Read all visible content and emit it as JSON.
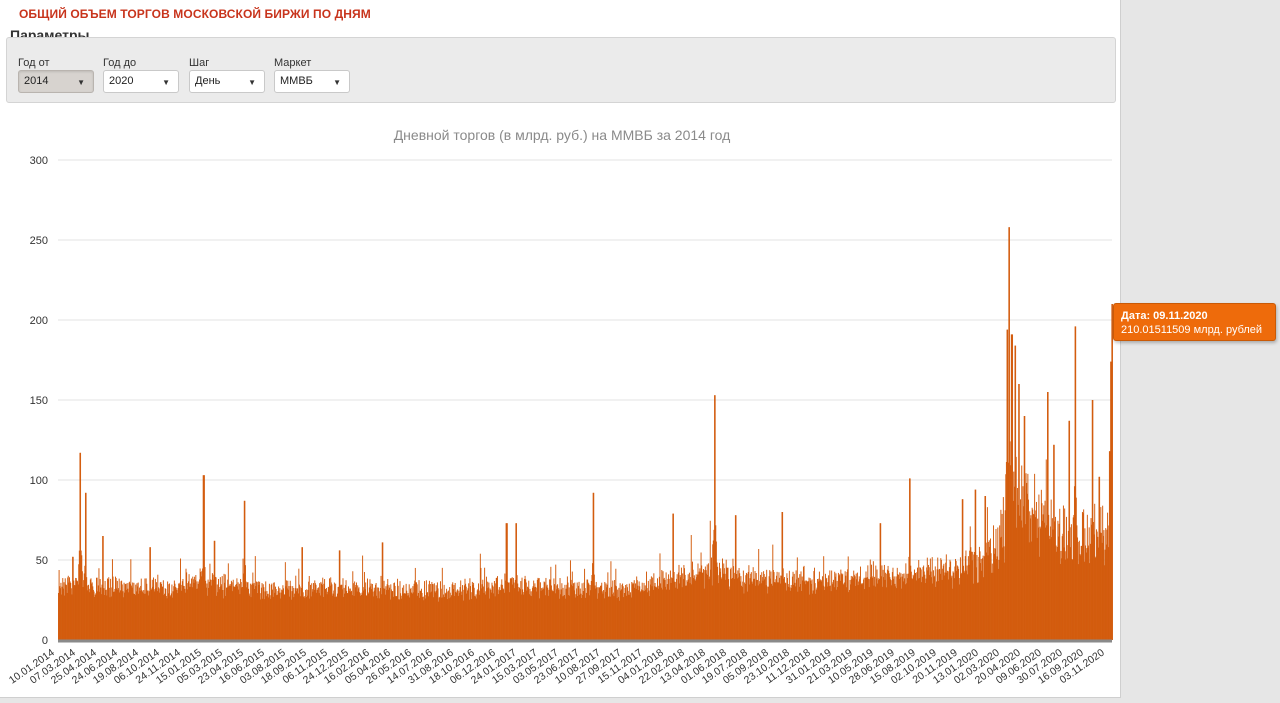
{
  "header": {
    "title": "ОБЩИЙ ОБЪЕМ ТОРГОВ МОСКОВСКОЙ БИРЖИ ПО ДНЯМ",
    "params_title": "Параметры"
  },
  "params": [
    {
      "label": "Год от",
      "value": "2014"
    },
    {
      "label": "Год до",
      "value": "2020"
    },
    {
      "label": "Шаг",
      "value": "День"
    },
    {
      "label": "Маркет",
      "value": "ММВБ"
    }
  ],
  "tooltip": {
    "date": "Дата: 09.11.2020",
    "value": "210.01511509 млрд. рублей"
  },
  "colors": {
    "bar": "#d35c0e",
    "title": "#c8341c",
    "tooltip": "#ee6b0b",
    "grid": "#e3e3e3"
  },
  "chart_data": {
    "type": "bar",
    "title": "Дневной  торгов (в млрд. руб.) на ММВБ за 2014 год",
    "ylim": [
      0,
      300
    ],
    "yticks": [
      0,
      50,
      100,
      150,
      200,
      250,
      300
    ],
    "xlabels": [
      "10.01.2014",
      "07.03.2014",
      "25.04.2014",
      "24.06.2014",
      "19.08.2014",
      "06.10.2014",
      "24.11.2014",
      "15.01.2015",
      "05.03.2015",
      "23.04.2015",
      "16.06.2015",
      "03.08.2015",
      "18.09.2015",
      "06.11.2015",
      "24.12.2015",
      "16.02.2016",
      "05.04.2016",
      "26.05.2016",
      "14.07.2016",
      "31.08.2016",
      "18.10.2016",
      "06.12.2016",
      "24.01.2017",
      "15.03.2017",
      "03.05.2017",
      "23.06.2017",
      "10.08.2017",
      "27.09.2017",
      "15.11.2017",
      "04.01.2018",
      "22.02.2018",
      "13.04.2018",
      "01.06.2018",
      "19.07.2018",
      "05.09.2018",
      "23.10.2018",
      "11.12.2018",
      "31.01.2019",
      "21.03.2019",
      "10.05.2019",
      "28.06.2019",
      "15.08.2019",
      "02.10.2019",
      "20.11.2019",
      "13.01.2020",
      "02.03.2020",
      "20.04.2020",
      "09.06.2020",
      "30.07.2020",
      "16.09.2020",
      "03.11.2020"
    ],
    "x_start": "10.01.2014",
    "x_end": "09.11.2020",
    "base_level": 27,
    "trend": [
      {
        "x": "10.01.2014",
        "y": 32
      },
      {
        "x": "06.10.2014",
        "y": 32
      },
      {
        "x": "24.11.2014",
        "y": 37
      },
      {
        "x": "15.01.2015",
        "y": 35
      },
      {
        "x": "23.04.2015",
        "y": 30
      },
      {
        "x": "16.02.2016",
        "y": 31
      },
      {
        "x": "14.07.2016",
        "y": 29
      },
      {
        "x": "06.12.2016",
        "y": 32
      },
      {
        "x": "24.01.2017",
        "y": 32
      },
      {
        "x": "10.08.2017",
        "y": 29
      },
      {
        "x": "04.01.2018",
        "y": 36
      },
      {
        "x": "13.04.2018",
        "y": 42
      },
      {
        "x": "19.07.2018",
        "y": 37
      },
      {
        "x": "11.12.2018",
        "y": 36
      },
      {
        "x": "10.05.2019",
        "y": 40
      },
      {
        "x": "02.10.2019",
        "y": 42
      },
      {
        "x": "20.11.2019",
        "y": 45
      },
      {
        "x": "13.01.2020",
        "y": 52
      },
      {
        "x": "02.03.2020",
        "y": 80
      },
      {
        "x": "20.04.2020",
        "y": 85
      },
      {
        "x": "09.06.2020",
        "y": 68
      },
      {
        "x": "30.07.2020",
        "y": 64
      },
      {
        "x": "16.09.2020",
        "y": 66
      },
      {
        "x": "09.11.2020",
        "y": 80
      }
    ],
    "peaks": [
      {
        "x": "13.02.2014",
        "y": 52
      },
      {
        "x": "03.03.2014",
        "y": 117
      },
      {
        "x": "15.03.2014",
        "y": 92
      },
      {
        "x": "25.04.2014",
        "y": 65
      },
      {
        "x": "15.08.2014",
        "y": 58
      },
      {
        "x": "20.12.2014",
        "y": 103
      },
      {
        "x": "15.01.2015",
        "y": 62
      },
      {
        "x": "27.03.2015",
        "y": 87
      },
      {
        "x": "10.08.2015",
        "y": 58
      },
      {
        "x": "06.11.2015",
        "y": 56
      },
      {
        "x": "16.02.2016",
        "y": 61
      },
      {
        "x": "06.12.2016",
        "y": 73
      },
      {
        "x": "29.12.2016",
        "y": 73
      },
      {
        "x": "29.06.2017",
        "y": 92
      },
      {
        "x": "04.01.2018",
        "y": 79
      },
      {
        "x": "13.04.2018",
        "y": 153
      },
      {
        "x": "01.06.2018",
        "y": 78
      },
      {
        "x": "20.09.2018",
        "y": 80
      },
      {
        "x": "10.05.2019",
        "y": 73
      },
      {
        "x": "18.07.2019",
        "y": 101
      },
      {
        "x": "20.11.2019",
        "y": 88
      },
      {
        "x": "20.12.2019",
        "y": 94
      },
      {
        "x": "13.01.2020",
        "y": 90
      },
      {
        "x": "05.03.2020",
        "y": 194
      },
      {
        "x": "10.03.2020",
        "y": 258
      },
      {
        "x": "16.03.2020",
        "y": 191
      },
      {
        "x": "24.03.2020",
        "y": 184
      },
      {
        "x": "01.04.2020",
        "y": 160
      },
      {
        "x": "15.04.2020",
        "y": 140
      },
      {
        "x": "09.06.2020",
        "y": 155
      },
      {
        "x": "23.06.2020",
        "y": 122
      },
      {
        "x": "30.07.2020",
        "y": 137
      },
      {
        "x": "13.08.2020",
        "y": 196
      },
      {
        "x": "23.09.2020",
        "y": 150
      },
      {
        "x": "09.10.2020",
        "y": 102
      },
      {
        "x": "03.11.2020",
        "y": 118
      },
      {
        "x": "06.11.2020",
        "y": 174
      },
      {
        "x": "09.11.2020",
        "y": 210
      }
    ],
    "grid": true
  }
}
